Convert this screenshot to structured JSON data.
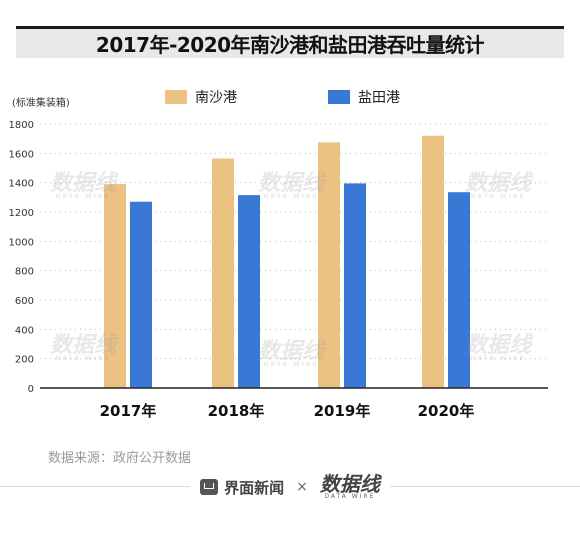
{
  "title": "2017年-2020年南沙港和盐田港吞吐量统计",
  "source_text": "数据来源：政府公开数据",
  "footer": {
    "brand": "界面新闻",
    "times": "×",
    "logo": "数据线",
    "logo_sub": "DATA WIRE"
  },
  "watermark": {
    "text": "数据线",
    "sub": "DATA WIRE"
  },
  "colors": {
    "nansha": "#ecc283",
    "yantian": "#3a78d6",
    "grid": "#bbbbbb",
    "axis": "#222222"
  },
  "chart_data": {
    "type": "bar",
    "ylabel": "(标准集装箱)",
    "categories": [
      "2017年",
      "2018年",
      "2019年",
      "2020年"
    ],
    "series": [
      {
        "name": "南沙港",
        "values": [
          1390,
          1565,
          1675,
          1720
        ]
      },
      {
        "name": "盐田港",
        "values": [
          1270,
          1315,
          1395,
          1335
        ]
      }
    ],
    "ylim": [
      0,
      1800
    ],
    "yticks": [
      0,
      200,
      400,
      600,
      800,
      1000,
      1200,
      1400,
      1600,
      1800
    ],
    "grid": true,
    "legend": "top-center"
  }
}
